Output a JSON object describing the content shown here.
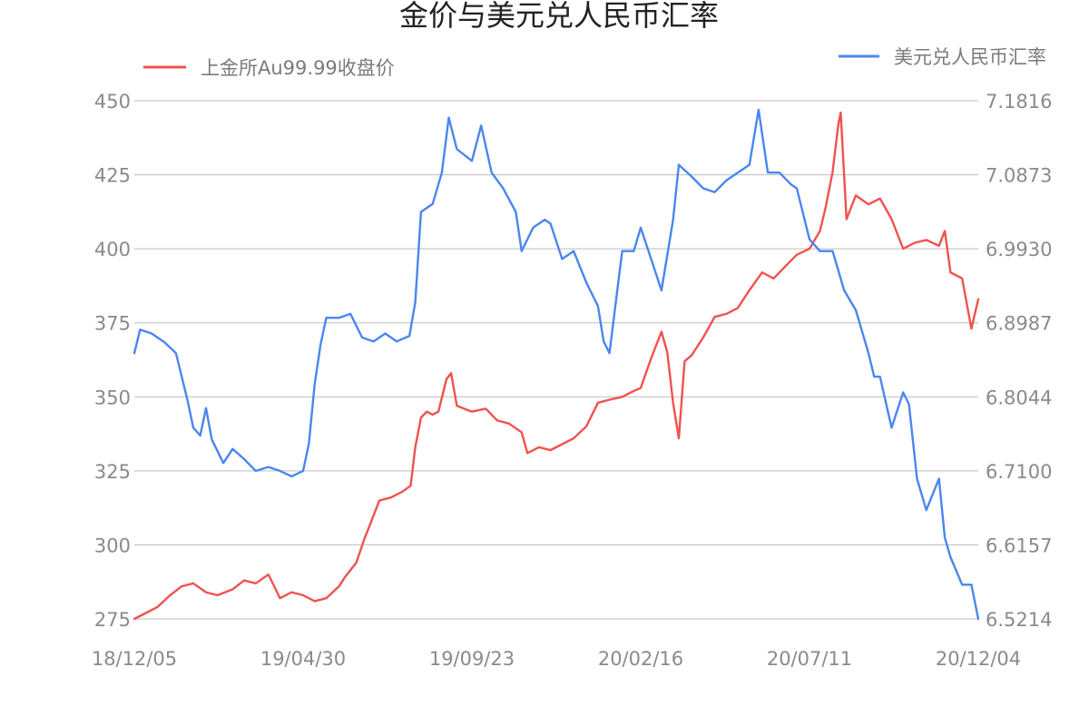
{
  "chart_data": {
    "type": "line",
    "title": "金价与美元兑人民币汇率",
    "x_tick_labels": [
      "18/12/05",
      "19/04/30",
      "19/09/23",
      "20/02/16",
      "20/07/11",
      "20/12/04"
    ],
    "x_range": [
      "18/12/05",
      "20/12/04"
    ],
    "left_axis": {
      "ylim": [
        275,
        450
      ],
      "tick_labels": [
        "450",
        "425",
        "400",
        "375",
        "350",
        "325",
        "300",
        "275"
      ]
    },
    "right_axis": {
      "ylim": [
        6.5214,
        7.1816
      ],
      "tick_labels": [
        "7.1816",
        "7.0873",
        "6.9930",
        "6.8987",
        "6.8044",
        "6.7100",
        "6.6157",
        "6.5214"
      ]
    },
    "grid": true,
    "series": [
      {
        "name": "上金所Au99.99收盘价",
        "axis": "left",
        "color": "#f0524f",
        "legend_position": "top-left",
        "points": [
          [
            "18/12/05",
            275
          ],
          [
            "18/12/15",
            277
          ],
          [
            "18/12/25",
            279
          ],
          [
            "19/01/05",
            283
          ],
          [
            "19/01/15",
            286
          ],
          [
            "19/01/25",
            287
          ],
          [
            "19/02/05",
            284
          ],
          [
            "19/02/15",
            283
          ],
          [
            "19/02/28",
            285
          ],
          [
            "19/03/10",
            288
          ],
          [
            "19/03/20",
            287
          ],
          [
            "19/03/31",
            290
          ],
          [
            "19/04/05",
            286
          ],
          [
            "19/04/10",
            282
          ],
          [
            "19/04/20",
            284
          ],
          [
            "19/04/30",
            283
          ],
          [
            "19/05/10",
            281
          ],
          [
            "19/05/20",
            282
          ],
          [
            "19/05/31",
            286
          ],
          [
            "19/06/05",
            289
          ],
          [
            "19/06/15",
            294
          ],
          [
            "19/06/22",
            302
          ],
          [
            "19/06/30",
            310
          ],
          [
            "19/07/05",
            315
          ],
          [
            "19/07/15",
            316
          ],
          [
            "19/07/25",
            318
          ],
          [
            "19/08/01",
            320
          ],
          [
            "19/08/05",
            333
          ],
          [
            "19/08/10",
            343
          ],
          [
            "19/08/15",
            345
          ],
          [
            "19/08/20",
            344
          ],
          [
            "19/08/25",
            345
          ],
          [
            "19/09/01",
            356
          ],
          [
            "19/09/05",
            358
          ],
          [
            "19/09/10",
            347
          ],
          [
            "19/09/23",
            345
          ],
          [
            "19/10/05",
            346
          ],
          [
            "19/10/15",
            342
          ],
          [
            "19/10/25",
            341
          ],
          [
            "19/11/05",
            338
          ],
          [
            "19/11/10",
            331
          ],
          [
            "19/11/20",
            333
          ],
          [
            "19/11/30",
            332
          ],
          [
            "19/12/10",
            334
          ],
          [
            "19/12/20",
            336
          ],
          [
            "19/12/31",
            340
          ],
          [
            "20/01/05",
            344
          ],
          [
            "20/01/10",
            348
          ],
          [
            "20/01/20",
            349
          ],
          [
            "20/01/31",
            350
          ],
          [
            "20/02/10",
            352
          ],
          [
            "20/02/16",
            353
          ],
          [
            "20/02/25",
            363
          ],
          [
            "20/03/05",
            372
          ],
          [
            "20/03/10",
            365
          ],
          [
            "20/03/15",
            348
          ],
          [
            "20/03/20",
            336
          ],
          [
            "20/03/25",
            362
          ],
          [
            "20/03/31",
            364
          ],
          [
            "20/04/10",
            370
          ],
          [
            "20/04/20",
            377
          ],
          [
            "20/04/30",
            378
          ],
          [
            "20/05/10",
            380
          ],
          [
            "20/05/20",
            386
          ],
          [
            "20/05/31",
            392
          ],
          [
            "20/06/10",
            390
          ],
          [
            "20/06/20",
            394
          ],
          [
            "20/06/30",
            398
          ],
          [
            "20/07/11",
            400
          ],
          [
            "20/07/20",
            406
          ],
          [
            "20/07/25",
            414
          ],
          [
            "20/07/31",
            426
          ],
          [
            "20/08/05",
            442
          ],
          [
            "20/08/07",
            446
          ],
          [
            "20/08/12",
            410
          ],
          [
            "20/08/20",
            418
          ],
          [
            "20/08/31",
            415
          ],
          [
            "20/09/10",
            417
          ],
          [
            "20/09/20",
            410
          ],
          [
            "20/09/30",
            400
          ],
          [
            "20/10/10",
            402
          ],
          [
            "20/10/20",
            403
          ],
          [
            "20/10/31",
            401
          ],
          [
            "20/11/05",
            406
          ],
          [
            "20/11/10",
            392
          ],
          [
            "20/11/20",
            390
          ],
          [
            "20/11/28",
            373
          ],
          [
            "20/12/04",
            383
          ]
        ]
      },
      {
        "name": "美元兑人民币汇率",
        "axis": "right",
        "color": "#4a86f0",
        "legend_position": "top-right",
        "points": [
          [
            "18/12/05",
            6.86
          ],
          [
            "18/12/10",
            6.89
          ],
          [
            "18/12/20",
            6.885
          ],
          [
            "18/12/31",
            6.874
          ],
          [
            "19/01/10",
            6.86
          ],
          [
            "19/01/20",
            6.8
          ],
          [
            "19/01/25",
            6.765
          ],
          [
            "19/01/31",
            6.755
          ],
          [
            "19/02/05",
            6.79
          ],
          [
            "19/02/10",
            6.75
          ],
          [
            "19/02/20",
            6.72
          ],
          [
            "19/02/28",
            6.738
          ],
          [
            "19/03/10",
            6.725
          ],
          [
            "19/03/20",
            6.71
          ],
          [
            "19/03/31",
            6.715
          ],
          [
            "19/04/10",
            6.71
          ],
          [
            "19/04/20",
            6.703
          ],
          [
            "19/04/30",
            6.71
          ],
          [
            "19/05/05",
            6.745
          ],
          [
            "19/05/10",
            6.82
          ],
          [
            "19/05/15",
            6.87
          ],
          [
            "19/05/20",
            6.905
          ],
          [
            "19/05/31",
            6.905
          ],
          [
            "19/06/10",
            6.91
          ],
          [
            "19/06/20",
            6.88
          ],
          [
            "19/06/30",
            6.875
          ],
          [
            "19/07/10",
            6.885
          ],
          [
            "19/07/20",
            6.875
          ],
          [
            "19/07/31",
            6.882
          ],
          [
            "19/08/05",
            6.925
          ],
          [
            "19/08/10",
            7.04
          ],
          [
            "19/08/20",
            7.05
          ],
          [
            "19/08/28",
            7.09
          ],
          [
            "19/09/03",
            7.16
          ],
          [
            "19/09/10",
            7.12
          ],
          [
            "19/09/23",
            7.105
          ],
          [
            "19/10/01",
            7.15
          ],
          [
            "19/10/10",
            7.09
          ],
          [
            "19/10/20",
            7.07
          ],
          [
            "19/10/31",
            7.04
          ],
          [
            "19/11/05",
            6.99
          ],
          [
            "19/11/15",
            7.02
          ],
          [
            "19/11/25",
            7.03
          ],
          [
            "19/11/30",
            7.025
          ],
          [
            "19/12/10",
            6.98
          ],
          [
            "19/12/20",
            6.99
          ],
          [
            "19/12/31",
            6.95
          ],
          [
            "20/01/10",
            6.92
          ],
          [
            "20/01/15",
            6.875
          ],
          [
            "20/01/20",
            6.86
          ],
          [
            "20/01/31",
            6.99
          ],
          [
            "20/02/10",
            6.99
          ],
          [
            "20/02/16",
            7.02
          ],
          [
            "20/02/25",
            6.98
          ],
          [
            "20/03/05",
            6.94
          ],
          [
            "20/03/15",
            7.03
          ],
          [
            "20/03/20",
            7.1
          ],
          [
            "20/03/31",
            7.085
          ],
          [
            "20/04/10",
            7.07
          ],
          [
            "20/04/20",
            7.065
          ],
          [
            "20/04/30",
            7.08
          ],
          [
            "20/05/10",
            7.09
          ],
          [
            "20/05/20",
            7.1
          ],
          [
            "20/05/28",
            7.17
          ],
          [
            "20/06/05",
            7.09
          ],
          [
            "20/06/15",
            7.09
          ],
          [
            "20/06/25",
            7.075
          ],
          [
            "20/06/30",
            7.07
          ],
          [
            "20/07/11",
            7.005
          ],
          [
            "20/07/20",
            6.99
          ],
          [
            "20/07/31",
            6.99
          ],
          [
            "20/08/10",
            6.94
          ],
          [
            "20/08/20",
            6.915
          ],
          [
            "20/08/31",
            6.86
          ],
          [
            "20/09/05",
            6.83
          ],
          [
            "20/09/10",
            6.83
          ],
          [
            "20/09/20",
            6.765
          ],
          [
            "20/09/30",
            6.81
          ],
          [
            "20/10/05",
            6.795
          ],
          [
            "20/10/12",
            6.7
          ],
          [
            "20/10/20",
            6.66
          ],
          [
            "20/10/31",
            6.7
          ],
          [
            "20/11/05",
            6.625
          ],
          [
            "20/11/10",
            6.6
          ],
          [
            "20/11/20",
            6.565
          ],
          [
            "20/11/28",
            6.565
          ],
          [
            "20/12/04",
            6.5214
          ]
        ]
      }
    ]
  }
}
